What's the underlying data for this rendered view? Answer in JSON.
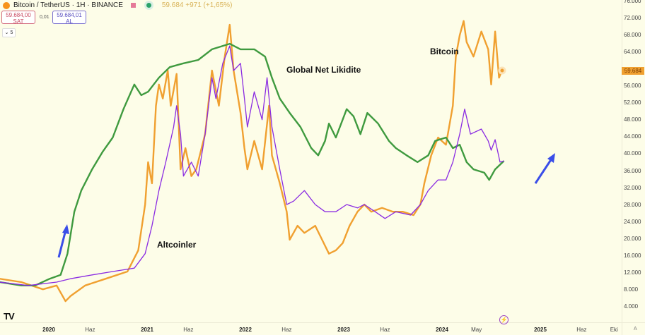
{
  "header": {
    "symbol": "Bitcoin / TetherUS · 1H · BINANCE",
    "change": "59.684 +971 (+1,65%)",
    "sell_price": "59.684,00",
    "sell_label": "SAT",
    "spread": "0,01",
    "buy_price": "59.684,01",
    "buy_label": "AL",
    "interval_select": "5",
    "current_price_tag": "59.684"
  },
  "logo": "17",
  "colors": {
    "bitcoin": "#f0a030",
    "liquidity": "#3f9a3f",
    "altcoins": "#8a2be2",
    "arrow": "#3a4ee8",
    "background": "#fdfde8"
  },
  "chart_data": {
    "type": "line",
    "title": "",
    "xlabel": "",
    "ylabel": "",
    "ylim": [
      0,
      76000
    ],
    "xlim": [
      2019.5,
      2025.8
    ],
    "grid": false,
    "y_ticks": [
      "76.000",
      "72.000",
      "68.000",
      "64.000",
      "56.000",
      "52.000",
      "48.000",
      "44.000",
      "40.000",
      "36.000",
      "32.000",
      "28.000",
      "24.000",
      "20.000",
      "16.000",
      "12.000",
      "8.000",
      "4.000"
    ],
    "y_tick_values": [
      76000,
      72000,
      68000,
      64000,
      56000,
      52000,
      48000,
      44000,
      40000,
      36000,
      32000,
      28000,
      24000,
      20000,
      16000,
      12000,
      8000,
      4000
    ],
    "x_ticks": [
      {
        "label": "2020",
        "t": 2020.0,
        "bold": true
      },
      {
        "label": "Haz",
        "t": 2020.42,
        "bold": false
      },
      {
        "label": "2021",
        "t": 2021.0,
        "bold": true
      },
      {
        "label": "Haz",
        "t": 2021.42,
        "bold": false
      },
      {
        "label": "2022",
        "t": 2022.0,
        "bold": true
      },
      {
        "label": "Haz",
        "t": 2022.42,
        "bold": false
      },
      {
        "label": "2023",
        "t": 2023.0,
        "bold": true
      },
      {
        "label": "Haz",
        "t": 2023.42,
        "bold": false
      },
      {
        "label": "2024",
        "t": 2024.0,
        "bold": true
      },
      {
        "label": "May",
        "t": 2024.35,
        "bold": false
      },
      {
        "label": "2025",
        "t": 2025.0,
        "bold": true
      },
      {
        "label": "Haz",
        "t": 2025.42,
        "bold": false
      },
      {
        "label": "Eki",
        "t": 2025.75,
        "bold": false
      }
    ],
    "annotations": [
      "Bitcoin",
      "Global Net Likidite",
      "Altcoinler"
    ],
    "series": [
      {
        "name": "Bitcoin",
        "color": "#f0a030",
        "x": [
          2019.5,
          2019.72,
          2019.94,
          2020.08,
          2020.17,
          2020.22,
          2020.37,
          2020.58,
          2020.8,
          2020.91,
          2020.98,
          2021.01,
          2021.05,
          2021.09,
          2021.12,
          2021.16,
          2021.21,
          2021.24,
          2021.3,
          2021.34,
          2021.39,
          2021.45,
          2021.5,
          2021.59,
          2021.66,
          2021.73,
          2021.79,
          2021.84,
          2021.88,
          2021.95,
          2021.99,
          2022.02,
          2022.09,
          2022.17,
          2022.24,
          2022.27,
          2022.35,
          2022.42,
          2022.45,
          2022.53,
          2022.6,
          2022.71,
          2022.78,
          2022.85,
          2022.92,
          2022.99,
          2023.06,
          2023.14,
          2023.21,
          2023.28,
          2023.39,
          2023.5,
          2023.6,
          2023.71,
          2023.78,
          2023.82,
          2023.89,
          2023.96,
          2024.04,
          2024.11,
          2024.14,
          2024.18,
          2024.22,
          2024.25,
          2024.32,
          2024.4,
          2024.47,
          2024.5,
          2024.54,
          2024.58,
          2024.61
        ],
        "y": [
          10600,
          9800,
          8100,
          9000,
          5300,
          6500,
          9000,
          10600,
          12300,
          17300,
          28100,
          38100,
          33100,
          51400,
          56400,
          53100,
          59700,
          51400,
          58900,
          36400,
          41400,
          34800,
          36400,
          44700,
          59700,
          51400,
          63000,
          70500,
          59700,
          49700,
          41400,
          36400,
          43100,
          36400,
          51400,
          39700,
          33100,
          26400,
          19800,
          23100,
          21400,
          23100,
          19800,
          16500,
          17300,
          19000,
          23100,
          26400,
          28100,
          26400,
          27300,
          26400,
          26400,
          25600,
          28100,
          33100,
          39700,
          43900,
          42200,
          51400,
          63000,
          68000,
          71400,
          66400,
          63000,
          68900,
          64700,
          56400,
          68900,
          58000,
          59700
        ]
      },
      {
        "name": "Global Net Likidite",
        "color": "#3f9a3f",
        "x": [
          2019.5,
          2019.72,
          2019.86,
          2020.01,
          2020.12,
          2020.19,
          2020.26,
          2020.33,
          2020.44,
          2020.55,
          2020.65,
          2020.76,
          2020.87,
          2020.94,
          2021.01,
          2021.12,
          2021.23,
          2021.37,
          2021.52,
          2021.66,
          2021.77,
          2021.84,
          2021.95,
          2022.09,
          2022.2,
          2022.27,
          2022.35,
          2022.45,
          2022.56,
          2022.67,
          2022.74,
          2022.81,
          2022.85,
          2022.92,
          2023.03,
          2023.1,
          2023.17,
          2023.24,
          2023.35,
          2023.46,
          2023.53,
          2023.64,
          2023.75,
          2023.86,
          2023.93,
          2024.04,
          2024.11,
          2024.18,
          2024.25,
          2024.32,
          2024.43,
          2024.48,
          2024.54,
          2024.63
        ],
        "y": [
          9800,
          9000,
          9000,
          10600,
          11500,
          16500,
          26400,
          31400,
          36400,
          40600,
          43900,
          50600,
          56400,
          53900,
          54700,
          58000,
          60500,
          61400,
          62200,
          64700,
          65500,
          66000,
          64700,
          64700,
          63000,
          58000,
          53100,
          49700,
          46400,
          41400,
          39700,
          43100,
          47200,
          43900,
          50600,
          48900,
          44700,
          49700,
          47200,
          43100,
          41400,
          39700,
          38100,
          39700,
          43100,
          43900,
          41400,
          42200,
          38100,
          36400,
          35600,
          33900,
          36400,
          38400
        ]
      },
      {
        "name": "Altcoinler",
        "color": "#8a2be2",
        "x": [
          2019.5,
          2019.79,
          2020.08,
          2020.22,
          2020.44,
          2020.65,
          2020.87,
          2020.98,
          2021.05,
          2021.12,
          2021.19,
          2021.27,
          2021.3,
          2021.34,
          2021.37,
          2021.45,
          2021.52,
          2021.59,
          2021.66,
          2021.7,
          2021.77,
          2021.84,
          2021.88,
          2021.95,
          2021.99,
          2022.02,
          2022.09,
          2022.17,
          2022.22,
          2022.27,
          2022.35,
          2022.42,
          2022.49,
          2022.6,
          2022.71,
          2022.81,
          2022.92,
          2023.03,
          2023.14,
          2023.21,
          2023.32,
          2023.42,
          2023.53,
          2023.68,
          2023.78,
          2023.86,
          2023.96,
          2024.04,
          2024.11,
          2024.18,
          2024.23,
          2024.29,
          2024.4,
          2024.47,
          2024.5,
          2024.54,
          2024.59,
          2024.63
        ],
        "y": [
          9800,
          9000,
          9800,
          10600,
          11500,
          12300,
          13100,
          16500,
          23100,
          31400,
          38100,
          46400,
          51400,
          44700,
          34800,
          38100,
          34800,
          44700,
          58000,
          53100,
          61400,
          65500,
          59700,
          61400,
          53100,
          46400,
          54700,
          48100,
          58000,
          46400,
          36400,
          28100,
          28900,
          31400,
          28100,
          26400,
          26400,
          28100,
          27300,
          28100,
          26400,
          24800,
          26400,
          25600,
          28100,
          31400,
          33900,
          33900,
          38100,
          44700,
          50600,
          44700,
          45900,
          43100,
          40900,
          43400,
          38100,
          38400
        ]
      }
    ]
  }
}
